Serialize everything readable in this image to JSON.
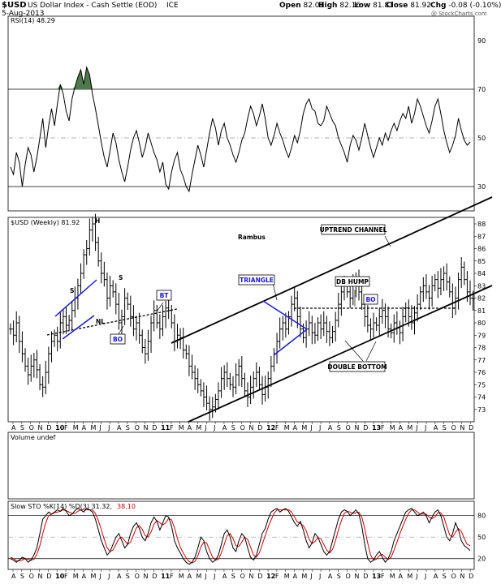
{
  "header": {
    "symbol": "$USD",
    "name": "US Dollar Index - Cash Settle (EOD)",
    "exchange": "ICE",
    "date": "5-Aug-2013",
    "ohlc": {
      "open_label": "Open",
      "open": "82.01",
      "high_label": "High",
      "high": "82.16",
      "low_label": "Low",
      "low": "81.81",
      "close_label": "Close",
      "close": "81.92",
      "chg_label": "Chg",
      "chg": "-0.08 (-0.10%)"
    },
    "watermark": "@ StockCharts.com"
  },
  "colors": {
    "price": "#000000",
    "annotation_blue": "#1a1adf",
    "stoch_d": "#d60000",
    "rsi_fill": "#4c7a4c",
    "grid": "#000000",
    "ref_dash": "#999999"
  },
  "chart_data": [
    {
      "type": "line",
      "panel": "rsi",
      "title": "RSI(14) 48.29",
      "ylim": [
        20,
        100
      ],
      "yticks": [
        30,
        50,
        70,
        90
      ],
      "reference_lines": [
        70,
        50,
        30
      ],
      "overbought_fill_above": 70,
      "x_count": 158,
      "values": [
        38,
        35,
        44,
        40,
        30,
        39,
        46,
        43,
        36,
        42,
        50,
        58,
        46,
        55,
        62,
        55,
        64,
        72,
        68,
        61,
        57,
        66,
        71,
        75,
        78,
        72,
        79,
        76,
        68,
        62,
        55,
        48,
        42,
        38,
        45,
        52,
        48,
        41,
        36,
        32,
        38,
        45,
        50,
        53,
        48,
        42,
        46,
        52,
        48,
        44,
        41,
        36,
        40,
        31,
        29,
        36,
        41,
        44,
        37,
        34,
        30,
        28,
        35,
        41,
        47,
        43,
        38,
        45,
        52,
        58,
        54,
        47,
        53,
        56,
        50,
        47,
        43,
        40,
        44,
        49,
        52,
        58,
        63,
        60,
        55,
        59,
        64,
        58,
        50,
        47,
        51,
        56,
        52,
        49,
        45,
        42,
        46,
        51,
        48,
        53,
        60,
        64,
        66,
        62,
        61,
        56,
        55,
        57,
        63,
        60,
        57,
        55,
        50,
        47,
        44,
        40,
        47,
        51,
        49,
        45,
        50,
        56,
        51,
        46,
        42,
        46,
        50,
        47,
        52,
        49,
        53,
        56,
        53,
        57,
        60,
        58,
        63,
        56,
        60,
        66,
        63,
        59,
        55,
        52,
        57,
        63,
        66,
        60,
        53,
        48,
        44,
        47,
        51,
        58,
        53,
        49,
        47,
        48.29
      ]
    },
    {
      "type": "ohlc",
      "panel": "price",
      "title": "$USD (Weekly) 81.92",
      "ylim": [
        72,
        88
      ],
      "yticks": [
        73,
        74,
        75,
        76,
        77,
        78,
        79,
        80,
        81,
        82,
        83,
        84,
        85,
        86,
        87,
        88
      ],
      "x_count": 158,
      "close": [
        79.5,
        79,
        80,
        78.5,
        77.5,
        76.5,
        75.8,
        76.5,
        77,
        76.2,
        75,
        74.8,
        76,
        77.5,
        78.5,
        79,
        78.5,
        80,
        80.5,
        79.8,
        80.2,
        81,
        82,
        83,
        84,
        85.5,
        86,
        87.5,
        88,
        86.5,
        85,
        84,
        83.5,
        82,
        83,
        82.5,
        81.5,
        80,
        80.5,
        82,
        81.5,
        80.5,
        79.5,
        80,
        79,
        78,
        77.5,
        78.5,
        80,
        81,
        80,
        79.5,
        80.5,
        81.2,
        81,
        80,
        78.5,
        79,
        78.8,
        77.8,
        77.5,
        76.5,
        76,
        75.5,
        75,
        74.5,
        74,
        73.5,
        73,
        73.2,
        73.8,
        74.5,
        75.5,
        76,
        75.5,
        75,
        74.8,
        75.8,
        76.5,
        75.5,
        74.5,
        74,
        74.8,
        75.5,
        76,
        75,
        74.2,
        74.8,
        75.5,
        76.5,
        77.5,
        78.5,
        79.5,
        80,
        79.5,
        80.5,
        81.5,
        82,
        80.5,
        79.5,
        78.8,
        79.5,
        80,
        79.2,
        79,
        80,
        79.5,
        80,
        79.3,
        78.8,
        79.3,
        80.2,
        81.5,
        82.5,
        83,
        82.5,
        82,
        83,
        83.5,
        82.5,
        81.5,
        80.5,
        79.8,
        79.5,
        80,
        79.8,
        80.5,
        81,
        80.5,
        79.5,
        79.2,
        80,
        79.6,
        79.2,
        80.5,
        81.2,
        80.5,
        80,
        80.8,
        81.5,
        82.5,
        83,
        82.5,
        82,
        83,
        83.5,
        82.8,
        83.5,
        84,
        83.3,
        82.5,
        81.2,
        82,
        83.5,
        84.5,
        83.5,
        82.5,
        82,
        81.92
      ]
    },
    {
      "type": "bar",
      "panel": "volume",
      "title": "Volume undef",
      "values": []
    },
    {
      "type": "line",
      "panel": "stochastic",
      "title": "Slow STO %K(14) %D(3) 31.32,",
      "title_d_value": "38.10",
      "ylim": [
        5,
        100
      ],
      "yticks": [
        20,
        50,
        80
      ],
      "reference_lines": [
        80,
        50,
        20
      ],
      "x_count": 158,
      "series": [
        {
          "name": "%K",
          "values": [
            20,
            18,
            15,
            18,
            22,
            20,
            15,
            18,
            25,
            35,
            55,
            75,
            80,
            85,
            82,
            85,
            88,
            86,
            90,
            86,
            80,
            82,
            87,
            90,
            88,
            85,
            90,
            88,
            85,
            75,
            60,
            45,
            35,
            25,
            30,
            40,
            50,
            55,
            45,
            35,
            40,
            55,
            65,
            70,
            62,
            50,
            45,
            55,
            70,
            78,
            72,
            60,
            70,
            80,
            78,
            65,
            45,
            35,
            28,
            20,
            15,
            12,
            15,
            22,
            35,
            50,
            45,
            30,
            20,
            15,
            18,
            25,
            40,
            55,
            60,
            50,
            35,
            30,
            45,
            55,
            50,
            35,
            22,
            18,
            25,
            40,
            55,
            62,
            75,
            85,
            88,
            90,
            85,
            88,
            90,
            86,
            78,
            70,
            65,
            72,
            60,
            45,
            35,
            42,
            55,
            50,
            40,
            30,
            25,
            30,
            45,
            60,
            75,
            85,
            88,
            86,
            80,
            84,
            88,
            82,
            65,
            40,
            20,
            15,
            18,
            25,
            30,
            22,
            15,
            20,
            30,
            45,
            55,
            65,
            75,
            85,
            88,
            90,
            85,
            80,
            82,
            85,
            80,
            70,
            78,
            85,
            88,
            80,
            65,
            50,
            45,
            55,
            70,
            60,
            45,
            38,
            35,
            31.32
          ]
        },
        {
          "name": "%D",
          "values": [
            22,
            20,
            17,
            17,
            18,
            20,
            19,
            18,
            19,
            26,
            38,
            55,
            70,
            80,
            82,
            84,
            85,
            86,
            88,
            87,
            85,
            83,
            83,
            86,
            88,
            88,
            88,
            88,
            88,
            83,
            73,
            60,
            47,
            35,
            30,
            32,
            40,
            48,
            50,
            45,
            40,
            43,
            53,
            63,
            66,
            61,
            52,
            50,
            57,
            68,
            73,
            70,
            67,
            70,
            76,
            74,
            63,
            48,
            36,
            28,
            21,
            16,
            14,
            16,
            24,
            36,
            43,
            42,
            32,
            22,
            18,
            19,
            28,
            40,
            52,
            55,
            48,
            38,
            37,
            43,
            50,
            47,
            36,
            25,
            22,
            28,
            40,
            52,
            64,
            74,
            83,
            88,
            88,
            88,
            88,
            88,
            85,
            78,
            71,
            69,
            66,
            59,
            47,
            41,
            44,
            49,
            48,
            40,
            32,
            28,
            33,
            45,
            60,
            73,
            83,
            86,
            85,
            83,
            84,
            85,
            78,
            62,
            42,
            25,
            18,
            19,
            24,
            26,
            22,
            19,
            22,
            32,
            43,
            55,
            65,
            75,
            83,
            88,
            88,
            85,
            82,
            82,
            82,
            78,
            76,
            78,
            84,
            84,
            78,
            65,
            53,
            50,
            57,
            62,
            58,
            48,
            40,
            38.1
          ]
        }
      ]
    }
  ],
  "x_axis": {
    "labels": [
      "A",
      "S",
      "O",
      "N",
      "D",
      "10",
      "F",
      "M",
      "A",
      "M",
      "J",
      "J",
      "A",
      "S",
      "O",
      "N",
      "D",
      "11",
      "F",
      "M",
      "A",
      "M",
      "J",
      "J",
      "A",
      "S",
      "O",
      "N",
      "D",
      "12",
      "F",
      "M",
      "A",
      "M",
      "J",
      "J",
      "A",
      "S",
      "O",
      "N",
      "D",
      "13",
      "F",
      "M",
      "A",
      "M",
      "J",
      "J",
      "A",
      "S",
      "O",
      "N",
      "D"
    ],
    "bold": [
      "10",
      "11",
      "12",
      "13"
    ]
  },
  "annotations": {
    "head": "H",
    "left_shoulder": "S",
    "right_shoulder": "S",
    "neckline": "NL",
    "bt": "BT",
    "bo1": "BO",
    "rambus": "Rambus",
    "uptrend_channel": "UPTREND CHANNEL",
    "triangle": "TRIANGLE",
    "db_hump": "DB HUMP",
    "bo2": "BO",
    "double_bottom": "DOUBLE  BOTTOM"
  }
}
